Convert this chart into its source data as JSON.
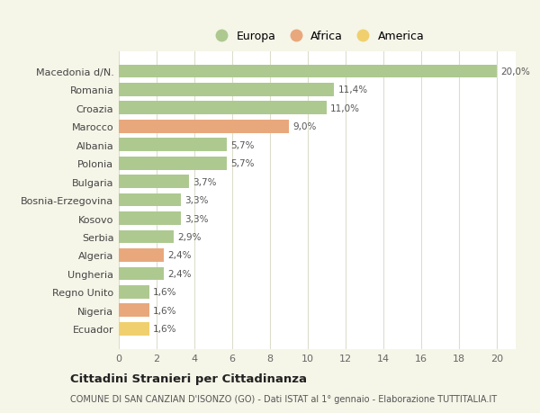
{
  "categories": [
    "Macedonia d/N.",
    "Romania",
    "Croazia",
    "Marocco",
    "Albania",
    "Polonia",
    "Bulgaria",
    "Bosnia-Erzegovina",
    "Kosovo",
    "Serbia",
    "Algeria",
    "Ungheria",
    "Regno Unito",
    "Nigeria",
    "Ecuador"
  ],
  "values": [
    20.0,
    11.4,
    11.0,
    9.0,
    5.7,
    5.7,
    3.7,
    3.3,
    3.3,
    2.9,
    2.4,
    2.4,
    1.6,
    1.6,
    1.6
  ],
  "continents": [
    "Europa",
    "Europa",
    "Europa",
    "Africa",
    "Europa",
    "Europa",
    "Europa",
    "Europa",
    "Europa",
    "Europa",
    "Africa",
    "Europa",
    "Europa",
    "Africa",
    "America"
  ],
  "colors": {
    "Europa": "#adc990",
    "Africa": "#e8a87c",
    "America": "#f0d06e"
  },
  "labels": [
    "20,0%",
    "11,4%",
    "11,0%",
    "9,0%",
    "5,7%",
    "5,7%",
    "3,7%",
    "3,3%",
    "3,3%",
    "2,9%",
    "2,4%",
    "2,4%",
    "1,6%",
    "1,6%",
    "1,6%"
  ],
  "xlim": [
    0,
    21
  ],
  "xticks": [
    0,
    2,
    4,
    6,
    8,
    10,
    12,
    14,
    16,
    18,
    20
  ],
  "title": "Cittadini Stranieri per Cittadinanza",
  "subtitle": "COMUNE DI SAN CANZIAN D'ISONZO (GO) - Dati ISTAT al 1° gennaio - Elaborazione TUTTITALIA.IT",
  "legend_items": [
    "Europa",
    "Africa",
    "America"
  ],
  "background_color": "#f5f5e8",
  "bar_area_color": "#ffffff",
  "grid_color": "#ddddcc"
}
